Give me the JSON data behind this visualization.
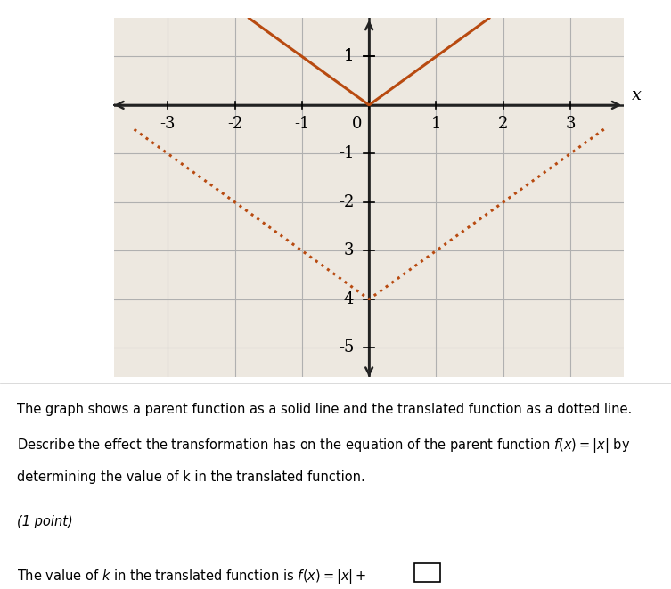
{
  "xlim": [
    -3.8,
    3.8
  ],
  "ylim": [
    -5.6,
    1.8
  ],
  "xticks": [
    -3,
    -2,
    -1,
    0,
    1,
    2,
    3
  ],
  "yticks": [
    -5,
    -4,
    -3,
    -2,
    -1,
    1
  ],
  "ytick_labels": [
    "-5",
    "-4",
    "-3",
    "-2",
    "-1",
    "1"
  ],
  "grid_color": "#b0b0b0",
  "graph_bg": "#ede8e0",
  "outer_bg": "#ffffff",
  "parent_color": "#b84a10",
  "translated_color": "#b84a10",
  "parent_k": 0,
  "translated_k": -4,
  "xlabel": "x",
  "arrow_color": "#222222",
  "tick_label_fontsize": 13,
  "axis_lw": 1.8,
  "graph_lw": 2.2,
  "text_block": [
    "The graph shows a parent function as a solid line and the translated function as a dotted line.",
    "Describe the effect the transformation has on the equation of the parent function $f(x) = |x|$ by",
    "determining the value of k in the translated function.",
    "(1 point)",
    "The value of k in the translated function is $f(x) = |x|+\\square$."
  ],
  "text_italic_idx": 3
}
